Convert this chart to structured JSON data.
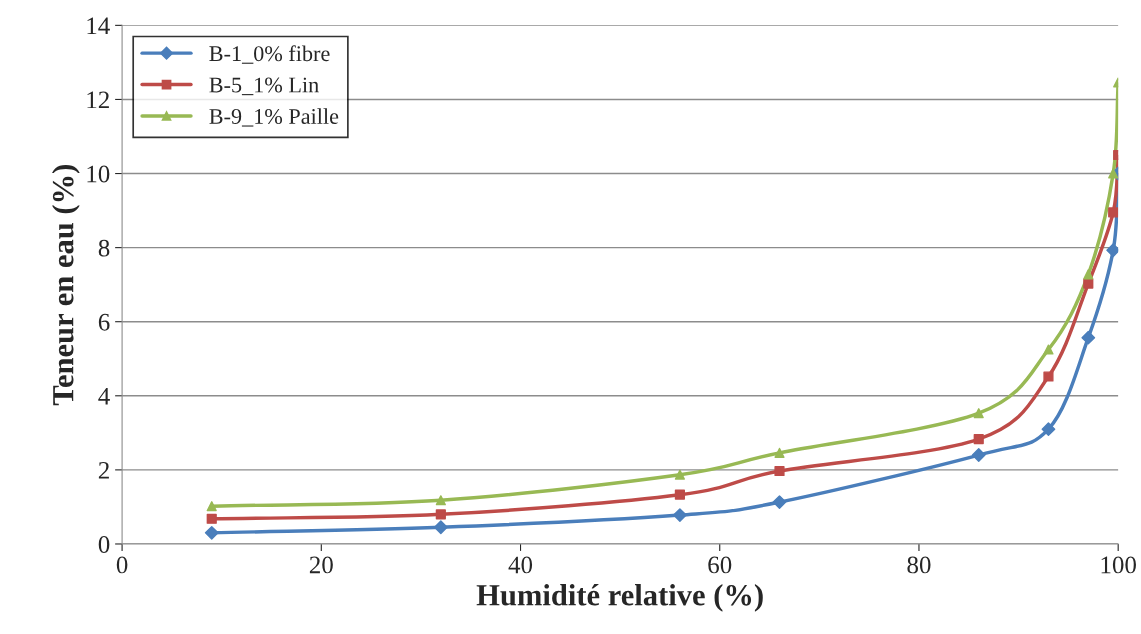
{
  "chart_data": {
    "type": "line",
    "xlabel": "Humidité relative (%)",
    "ylabel": "Teneur en eau (%)",
    "x": [
      9,
      32,
      56,
      66,
      86,
      93,
      97,
      99.5,
      100
    ],
    "series": [
      {
        "name": "B-1_0% fibre",
        "color": "#4a7ebb",
        "marker": "diamond",
        "values": [
          0.3,
          0.45,
          0.78,
          1.13,
          2.4,
          3.1,
          5.57,
          7.93,
          10.0
        ]
      },
      {
        "name": "B-5_1% Lin",
        "color": "#be4b48",
        "marker": "square",
        "values": [
          0.68,
          0.8,
          1.33,
          1.97,
          2.83,
          4.52,
          7.03,
          8.95,
          10.5
        ]
      },
      {
        "name": "B-9_1% Paille",
        "color": "#98b954",
        "marker": "triangle",
        "values": [
          1.02,
          1.18,
          1.87,
          2.46,
          3.53,
          5.25,
          7.28,
          10.0,
          12.46
        ]
      }
    ],
    "xlim": [
      0,
      100
    ],
    "xticks": [
      0,
      20,
      40,
      60,
      80,
      100
    ],
    "ylim": [
      0,
      14
    ],
    "yticks": [
      0,
      2,
      4,
      6,
      8,
      10,
      12,
      14
    ],
    "grid": "y",
    "legend": "top left",
    "line_style": "solid"
  }
}
